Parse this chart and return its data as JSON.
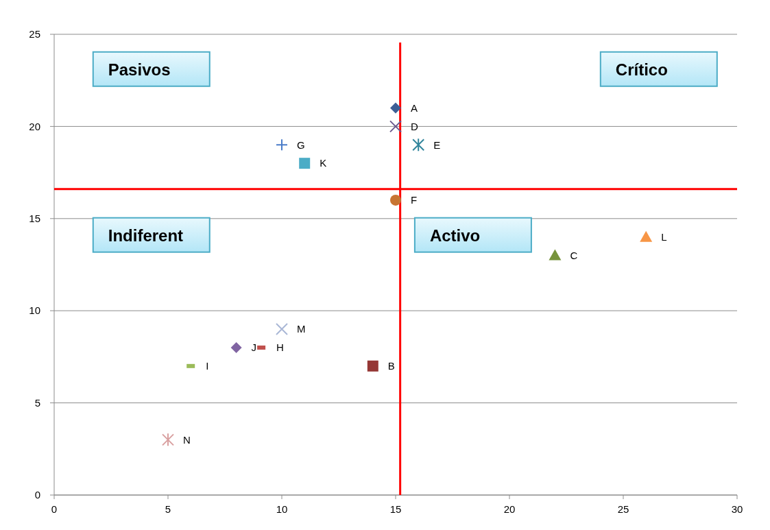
{
  "chart_data": {
    "type": "scatter",
    "xlim": [
      0,
      30
    ],
    "ylim": [
      0,
      25
    ],
    "xticks": [
      0,
      5,
      10,
      15,
      20,
      25,
      30
    ],
    "yticks": [
      0,
      5,
      10,
      15,
      20,
      25
    ],
    "grid": "y",
    "annotations": [
      "Pasivos",
      "Crítico",
      "Indiferent",
      "Activo"
    ],
    "ref_lines": [
      {
        "axis": "x",
        "value": 15.2,
        "label": null,
        "color": "#ff0000"
      },
      {
        "axis": "y",
        "value": 16.6,
        "label": null,
        "color": "#ff0000"
      }
    ],
    "series": [
      {
        "name": "A",
        "color": "#3c5f96",
        "marker": "diamond",
        "x": [
          15
        ],
        "values": [
          21
        ]
      },
      {
        "name": "B",
        "color": "#953735",
        "marker": "square",
        "x": [
          14
        ],
        "values": [
          7
        ]
      },
      {
        "name": "C",
        "color": "#77933c",
        "marker": "triangle",
        "x": [
          22
        ],
        "values": [
          13
        ]
      },
      {
        "name": "D",
        "color": "#6a5a8f",
        "marker": "x",
        "x": [
          15
        ],
        "values": [
          20
        ]
      },
      {
        "name": "E",
        "color": "#31859c",
        "marker": "cross",
        "x": [
          16
        ],
        "values": [
          19
        ]
      },
      {
        "name": "F",
        "color": "#c87533",
        "marker": "circle",
        "x": [
          15
        ],
        "values": [
          16
        ]
      },
      {
        "name": "G",
        "color": "#4a7cc9",
        "marker": "plus",
        "x": [
          10
        ],
        "values": [
          19
        ]
      },
      {
        "name": "H",
        "color": "#c0504d",
        "x": [
          9.1
        ],
        "values": [
          8
        ]
      },
      {
        "name": "I",
        "color": "#9bbb59",
        "x": [
          6
        ],
        "values": [
          7
        ]
      },
      {
        "name": "J",
        "color": "#8064a2",
        "marker": "diamond",
        "x": [
          8
        ],
        "values": [
          8
        ]
      },
      {
        "name": "K",
        "color": "#4bacc6",
        "marker": "square",
        "x": [
          11
        ],
        "values": [
          18
        ]
      },
      {
        "name": "L",
        "color": "#f79646",
        "marker": "triangle",
        "x": [
          26
        ],
        "values": [
          14
        ]
      },
      {
        "name": "M",
        "color": "#a9b7d6",
        "marker": "x",
        "x": [
          10
        ],
        "values": [
          9
        ]
      },
      {
        "name": "N",
        "color": "#d9a0a0",
        "marker": "cross",
        "x": [
          5
        ],
        "values": [
          3
        ]
      }
    ]
  }
}
